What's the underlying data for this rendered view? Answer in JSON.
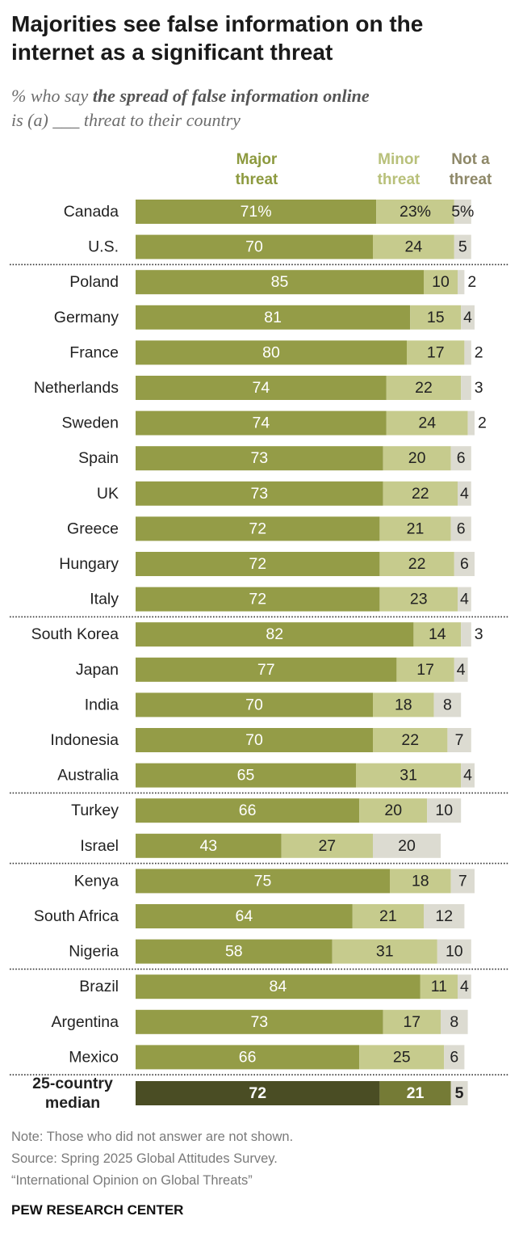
{
  "title": "Majorities see false information on the internet as a significant threat",
  "subtitle": {
    "prefix": "% who say ",
    "emphasis": "the spread of false information online",
    "suffix": "is (a) ___ threat to their country"
  },
  "legend": {
    "major_line1": "Major",
    "major_line2": "threat",
    "minor_line1": "Minor",
    "minor_line2": "threat",
    "not_line1": "Not a",
    "not_line2": "threat"
  },
  "colors": {
    "major": "#949c47",
    "minor": "#c6cb8d",
    "not": "#dcdbd1",
    "median_major": "#4a4d24",
    "median_minor": "#757b36",
    "legend_major": "#8d9a3f",
    "legend_minor": "#b8c07a",
    "legend_not": "#8e8868"
  },
  "chart_data": {
    "type": "bar",
    "stacked": true,
    "orientation": "horizontal",
    "series_names": [
      "Major threat",
      "Minor threat",
      "Not a threat"
    ],
    "xlim": [
      0,
      100
    ],
    "rows": [
      {
        "country": "Canada",
        "values": [
          71,
          23,
          5
        ],
        "labels": [
          "71%",
          "23%",
          "5%"
        ]
      },
      {
        "country": "U.S.",
        "values": [
          70,
          24,
          5
        ],
        "labels": [
          "70",
          "24",
          "5"
        ]
      },
      {
        "country": "Poland",
        "values": [
          85,
          10,
          2
        ],
        "labels": [
          "85",
          "10",
          "2"
        ]
      },
      {
        "country": "Germany",
        "values": [
          81,
          15,
          4
        ],
        "labels": [
          "81",
          "15",
          "4"
        ]
      },
      {
        "country": "France",
        "values": [
          80,
          17,
          2
        ],
        "labels": [
          "80",
          "17",
          "2"
        ]
      },
      {
        "country": "Netherlands",
        "values": [
          74,
          22,
          3
        ],
        "labels": [
          "74",
          "22",
          "3"
        ]
      },
      {
        "country": "Sweden",
        "values": [
          74,
          24,
          2
        ],
        "labels": [
          "74",
          "24",
          "2"
        ]
      },
      {
        "country": "Spain",
        "values": [
          73,
          20,
          6
        ],
        "labels": [
          "73",
          "20",
          "6"
        ]
      },
      {
        "country": "UK",
        "values": [
          73,
          22,
          4
        ],
        "labels": [
          "73",
          "22",
          "4"
        ]
      },
      {
        "country": "Greece",
        "values": [
          72,
          21,
          6
        ],
        "labels": [
          "72",
          "21",
          "6"
        ]
      },
      {
        "country": "Hungary",
        "values": [
          72,
          22,
          6
        ],
        "labels": [
          "72",
          "22",
          "6"
        ]
      },
      {
        "country": "Italy",
        "values": [
          72,
          23,
          4
        ],
        "labels": [
          "72",
          "23",
          "4"
        ]
      },
      {
        "country": "South Korea",
        "values": [
          82,
          14,
          3
        ],
        "labels": [
          "82",
          "14",
          "3"
        ]
      },
      {
        "country": "Japan",
        "values": [
          77,
          17,
          4
        ],
        "labels": [
          "77",
          "17",
          "4"
        ]
      },
      {
        "country": "India",
        "values": [
          70,
          18,
          8
        ],
        "labels": [
          "70",
          "18",
          "8"
        ]
      },
      {
        "country": "Indonesia",
        "values": [
          70,
          22,
          7
        ],
        "labels": [
          "70",
          "22",
          "7"
        ]
      },
      {
        "country": "Australia",
        "values": [
          65,
          31,
          4
        ],
        "labels": [
          "65",
          "31",
          "4"
        ]
      },
      {
        "country": "Turkey",
        "values": [
          66,
          20,
          10
        ],
        "labels": [
          "66",
          "20",
          "10"
        ]
      },
      {
        "country": "Israel",
        "values": [
          43,
          27,
          20
        ],
        "labels": [
          "43",
          "27",
          "20"
        ]
      },
      {
        "country": "Kenya",
        "values": [
          75,
          18,
          7
        ],
        "labels": [
          "75",
          "18",
          "7"
        ]
      },
      {
        "country": "South Africa",
        "values": [
          64,
          21,
          12
        ],
        "labels": [
          "64",
          "21",
          "12"
        ]
      },
      {
        "country": "Nigeria",
        "values": [
          58,
          31,
          10
        ],
        "labels": [
          "58",
          "31",
          "10"
        ]
      },
      {
        "country": "Brazil",
        "values": [
          84,
          11,
          4
        ],
        "labels": [
          "84",
          "11",
          "4"
        ]
      },
      {
        "country": "Argentina",
        "values": [
          73,
          17,
          8
        ],
        "labels": [
          "73",
          "17",
          "8"
        ]
      },
      {
        "country": "Mexico",
        "values": [
          66,
          25,
          6
        ],
        "labels": [
          "66",
          "25",
          "6"
        ]
      }
    ],
    "group_breaks_after": [
      "U.S.",
      "Italy",
      "Australia",
      "Israel",
      "Nigeria",
      "Mexico"
    ],
    "median": {
      "label_line1": "25-country",
      "label_line2": "median",
      "values": [
        72,
        21,
        5
      ],
      "labels": [
        "72",
        "21",
        "5"
      ]
    }
  },
  "notes": {
    "note": "Note: Those who did not answer are not shown.",
    "source": "Source: Spring 2025 Global Attitudes Survey.",
    "report": "“International Opinion on Global Threats”"
  },
  "brand": "PEW RESEARCH CENTER"
}
